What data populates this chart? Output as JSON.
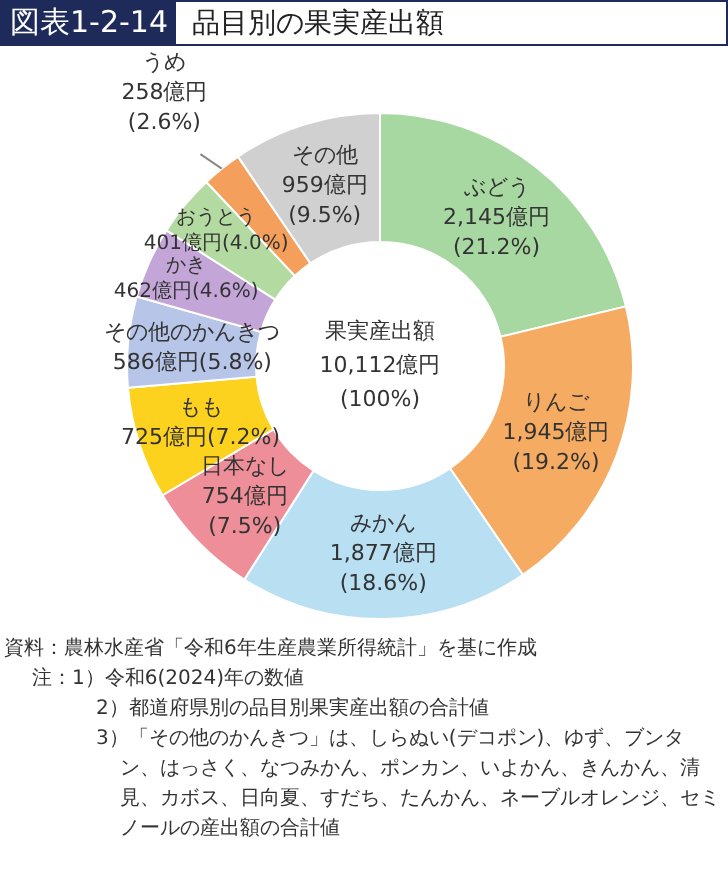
{
  "chart_data": {
    "type": "donut",
    "title": "図表1-2-14",
    "subtitle": "品目別の果実産出額",
    "categories": [
      "ぶどう",
      "りんご",
      "みかん",
      "日本なし",
      "もも",
      "その他のかんきつ",
      "かき",
      "おうとう",
      "うめ",
      "その他"
    ],
    "values": [
      2145,
      1945,
      1877,
      754,
      725,
      586,
      462,
      401,
      258,
      959
    ],
    "colors": [
      "#a8d8a2",
      "#f6ab62",
      "#b8dff2",
      "#ee8e98",
      "#fcd21e",
      "#b6c5e8",
      "#c3a5d8",
      "#b3daa1",
      "#f4a05c",
      "#d0d0d0"
    ],
    "value_labels": [
      "2,145億円\n(21.2%)",
      "1,945億円\n(19.2%)",
      "1,877億円\n(18.6%)",
      "754億円\n(7.5%)",
      "725億円(7.2%)",
      "586億円(5.8%)",
      "462億円(4.6%)",
      "401億円(4.0%)",
      "258億円\n(2.6%)",
      "959億円\n(9.5%)"
    ],
    "annotations": [
      "果実産出額",
      "10,112億円",
      "(100%)",
      "資料：農林水産省「令和6年生産農業所得統計」を基に作成",
      "注：1）令和6(2024)年の数値",
      "2）都道府県別の品目別果実産出額の合計値",
      "3）「その他のかんきつ」は、しらぬい(デコポン)、ゆず、ブンタン、はっさく、なつみかん、ポンカン、いよかん、きんかん、清見、カボス、日向夏、すだち、たんかん、ネーブルオレンジ、セミノールの産出額の合計値"
    ],
    "legend": false
  }
}
